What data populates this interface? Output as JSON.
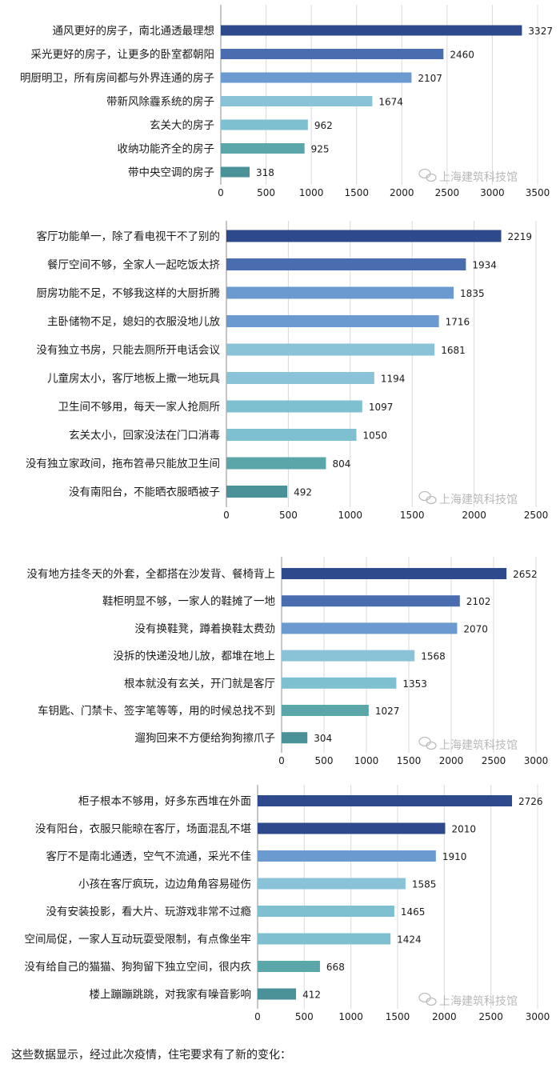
{
  "chart_data": [
    {
      "type": "bar",
      "orientation": "horizontal",
      "categories": [
        "通风更好的房子，南北通透最理想",
        "采光更好的房子，让更多的卧室都朝阳",
        "明厨明卫，所有房间都与外界连通的房子",
        "带新风除霾系统的房子",
        "玄关大的房子",
        "收纳功能齐全的房子",
        "带中央空调的房子"
      ],
      "values": [
        3327,
        2460,
        2107,
        1674,
        962,
        925,
        318
      ],
      "xlim": [
        0,
        3500
      ],
      "ticks": [
        "0",
        "500",
        "1000",
        "1500",
        "2000",
        "2500",
        "3000",
        "3500"
      ],
      "grid": true,
      "watermark": "上海建筑科技馆"
    },
    {
      "type": "bar",
      "orientation": "horizontal",
      "categories": [
        "客厅功能单一，除了看电视干不了别的",
        "餐厅空间不够，全家人一起吃饭太挤",
        "厨房功能不足，不够我这样的大厨折腾",
        "主卧储物不足，媳妇的衣服没地儿放",
        "没有独立书房，只能去厕所开电话会议",
        "儿童房太小，客厅地板上撒一地玩具",
        "卫生间不够用，每天一家人抢厕所",
        "玄关太小，回家没法在门口消毒",
        "没有独立家政间，拖布笤帚只能放卫生间",
        "没有南阳台，不能晒衣服晒被子"
      ],
      "values": [
        2219,
        1934,
        1835,
        1716,
        1681,
        1194,
        1097,
        1050,
        804,
        492
      ],
      "xlim": [
        0,
        2500
      ],
      "ticks": [
        "0",
        "500",
        "1000",
        "1500",
        "2000",
        "2500"
      ],
      "grid": true,
      "watermark": "上海建筑科技馆"
    },
    {
      "type": "bar",
      "orientation": "horizontal",
      "categories": [
        "没有地方挂冬天的外套，全都搭在沙发背、餐椅背上",
        "鞋柜明显不够，一家人的鞋摊了一地",
        "没有换鞋凳，蹲着换鞋太费劲",
        "没拆的快递没地儿放，都堆在地上",
        "根本就没有玄关，开门就是客厅",
        "车钥匙、门禁卡、签字笔等等，用的时候总找不到",
        "遛狗回来不方便给狗狗擦爪子"
      ],
      "values": [
        2652,
        2102,
        2070,
        1568,
        1353,
        1027,
        304
      ],
      "xlim": [
        0,
        3000
      ],
      "ticks": [
        "0",
        "500",
        "1000",
        "1500",
        "2000",
        "2500",
        "3000"
      ],
      "grid": true,
      "watermark": "上海建筑科技馆"
    },
    {
      "type": "bar",
      "orientation": "horizontal",
      "categories": [
        "柜子根本不够用，好多东西堆在外面",
        "没有阳台，衣服只能晾在客厅，场面混乱不堪",
        "客厅不是南北通透，空气不流通，采光不佳",
        "小孩在客厅疯玩，边边角角容易碰伤",
        "没有安装投影，看大片、玩游戏非常不过瘾",
        "空间局促，一家人互动玩耍受限制，有点像坐牢",
        "没有给自己的猫猫、狗狗留下独立空间，很内疚",
        "楼上蹦蹦跳跳，对我家有噪音影响"
      ],
      "values": [
        2726,
        2010,
        1910,
        1585,
        1465,
        1424,
        668,
        412
      ],
      "xlim": [
        0,
        3000
      ],
      "ticks": [
        "0",
        "500",
        "1000",
        "1500",
        "2000",
        "2500",
        "3000"
      ],
      "grid": true,
      "watermark": "上海建筑科技馆"
    }
  ],
  "palette": [
    "#2e4a8c",
    "#4a6db0",
    "#6a9ad0",
    "#8ac2d8",
    "#7ec0cf",
    "#5aa6a8",
    "#4a9198"
  ],
  "footer_text": "这些数据显示，经过此次疫情，住宅要求有了新的变化："
}
